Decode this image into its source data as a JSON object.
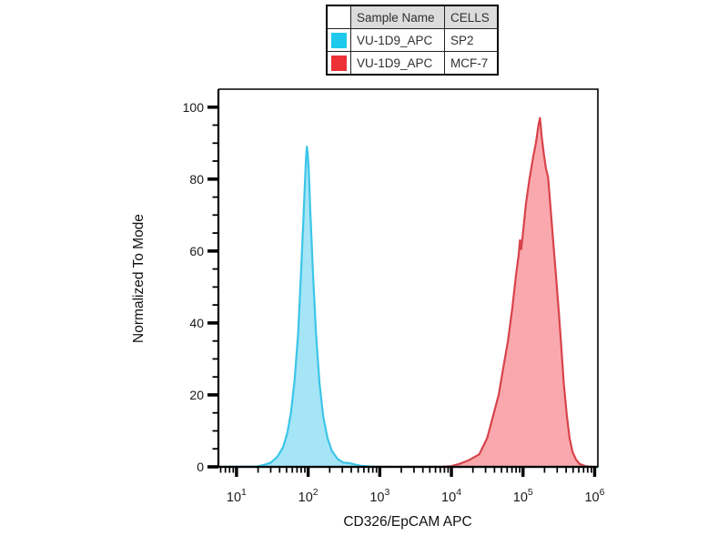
{
  "page": {
    "background": "#ffffff"
  },
  "legend_table": {
    "columns": [
      "",
      "Sample Name",
      "CELLS"
    ],
    "header_bg": "#dcdcdc",
    "rows": [
      {
        "swatch_color": "#1ec9ec",
        "sample_name": "VU-1D9_APC",
        "cells": "SP2"
      },
      {
        "swatch_color": "#ee3136",
        "sample_name": "VU-1D9_APC",
        "cells": "MCF-7"
      }
    ]
  },
  "chart_data": {
    "type": "area",
    "subtype": "flow-cytometry-histogram",
    "title": "",
    "xlabel": "CD326/EpCAM APC",
    "ylabel": "Normalized To Mode",
    "x_scale": "log10",
    "x_range_log": [
      0.747,
      6.045
    ],
    "x_major_tick_exponents": [
      1,
      2,
      3,
      4,
      5,
      6
    ],
    "x_minor_ticks": "log multiples 2-9 per decade",
    "ylim": [
      0,
      105
    ],
    "y_ticks": [
      0,
      20,
      40,
      60,
      80,
      100
    ],
    "y_minor_step": 5,
    "grid": false,
    "legend_position": "top-center-table",
    "axis_color": "#000000",
    "tick_label_color": "#1a1a1a",
    "series": [
      {
        "name": "VU-1D9_APC",
        "cells": "SP2",
        "stroke": "#3cc5e8",
        "fill": "#a5e5f6",
        "mode_x": 100,
        "peak_y": 89,
        "points_log_y": [
          [
            0.747,
            0
          ],
          [
            1.29,
            0.1
          ],
          [
            1.38,
            0.5
          ],
          [
            1.48,
            1.2
          ],
          [
            1.57,
            2.8
          ],
          [
            1.65,
            5.5
          ],
          [
            1.71,
            9.5
          ],
          [
            1.76,
            15
          ],
          [
            1.81,
            24
          ],
          [
            1.86,
            37
          ],
          [
            1.9,
            54
          ],
          [
            1.93,
            67
          ],
          [
            1.955,
            79
          ],
          [
            1.97,
            86
          ],
          [
            1.982,
            89
          ],
          [
            1.995,
            87
          ],
          [
            2.01,
            82
          ],
          [
            2.03,
            71
          ],
          [
            2.07,
            53
          ],
          [
            2.11,
            37
          ],
          [
            2.16,
            23
          ],
          [
            2.21,
            14
          ],
          [
            2.27,
            8
          ],
          [
            2.33,
            4.5
          ],
          [
            2.41,
            2.2
          ],
          [
            2.49,
            1.2
          ],
          [
            2.58,
            1.0
          ],
          [
            2.64,
            0.7
          ],
          [
            2.73,
            0.3
          ],
          [
            2.87,
            0.1
          ],
          [
            3.0,
            0
          ],
          [
            6.045,
            0
          ]
        ]
      },
      {
        "name": "VU-1D9_APC",
        "cells": "MCF-7",
        "stroke": "#d8434b",
        "fill": "#f9a9ad",
        "mode_x": 170000,
        "peak_y": 97,
        "points_log_y": [
          [
            0.747,
            0
          ],
          [
            3.85,
            0
          ],
          [
            4.0,
            0.2
          ],
          [
            4.11,
            0.8
          ],
          [
            4.24,
            1.8
          ],
          [
            4.39,
            3.5
          ],
          [
            4.5,
            8
          ],
          [
            4.58,
            14
          ],
          [
            4.66,
            20
          ],
          [
            4.72,
            27
          ],
          [
            4.79,
            35
          ],
          [
            4.85,
            44
          ],
          [
            4.9,
            53
          ],
          [
            4.94,
            59
          ],
          [
            4.958,
            63
          ],
          [
            4.975,
            60.5
          ],
          [
            5.01,
            67
          ],
          [
            5.04,
            73
          ],
          [
            5.09,
            80
          ],
          [
            5.14,
            86
          ],
          [
            5.18,
            90
          ],
          [
            5.215,
            95
          ],
          [
            5.237,
            97
          ],
          [
            5.26,
            92
          ],
          [
            5.29,
            87
          ],
          [
            5.32,
            83
          ],
          [
            5.35,
            80.5
          ],
          [
            5.38,
            73
          ],
          [
            5.42,
            63
          ],
          [
            5.46,
            53
          ],
          [
            5.5,
            43
          ],
          [
            5.535,
            33
          ],
          [
            5.57,
            23
          ],
          [
            5.61,
            14.5
          ],
          [
            5.65,
            8
          ],
          [
            5.69,
            4.2
          ],
          [
            5.74,
            2
          ],
          [
            5.79,
            0.8
          ],
          [
            5.87,
            0.2
          ],
          [
            5.97,
            0
          ],
          [
            6.045,
            0
          ]
        ]
      }
    ]
  }
}
